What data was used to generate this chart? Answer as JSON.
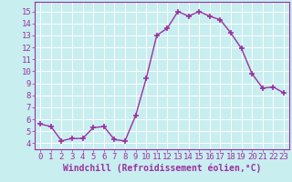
{
  "x": [
    0,
    1,
    2,
    3,
    4,
    5,
    6,
    7,
    8,
    9,
    10,
    11,
    12,
    13,
    14,
    15,
    16,
    17,
    18,
    19,
    20,
    21,
    22,
    23
  ],
  "y": [
    5.6,
    5.4,
    4.2,
    4.4,
    4.4,
    5.3,
    5.4,
    4.3,
    4.2,
    6.3,
    9.4,
    13.0,
    13.6,
    15.0,
    14.6,
    15.0,
    14.6,
    14.3,
    13.2,
    11.9,
    9.8,
    8.6,
    8.7,
    8.2
  ],
  "line_color": "#9b30a0",
  "marker": "+",
  "marker_size": 4,
  "line_width": 1.0,
  "xlabel": "Windchill (Refroidissement éolien,°C)",
  "xlabel_fontsize": 7,
  "ylim": [
    3.5,
    15.8
  ],
  "xlim": [
    -0.5,
    23.5
  ],
  "yticks": [
    4,
    5,
    6,
    7,
    8,
    9,
    10,
    11,
    12,
    13,
    14,
    15
  ],
  "xticks": [
    0,
    1,
    2,
    3,
    4,
    5,
    6,
    7,
    8,
    9,
    10,
    11,
    12,
    13,
    14,
    15,
    16,
    17,
    18,
    19,
    20,
    21,
    22,
    23
  ],
  "bg_color": "#c8eef0",
  "grid_color": "#ffffff",
  "tick_fontsize": 6.5,
  "tick_color": "#9b30a0",
  "label_color": "#9b30a0",
  "spine_color": "#9b30a0"
}
